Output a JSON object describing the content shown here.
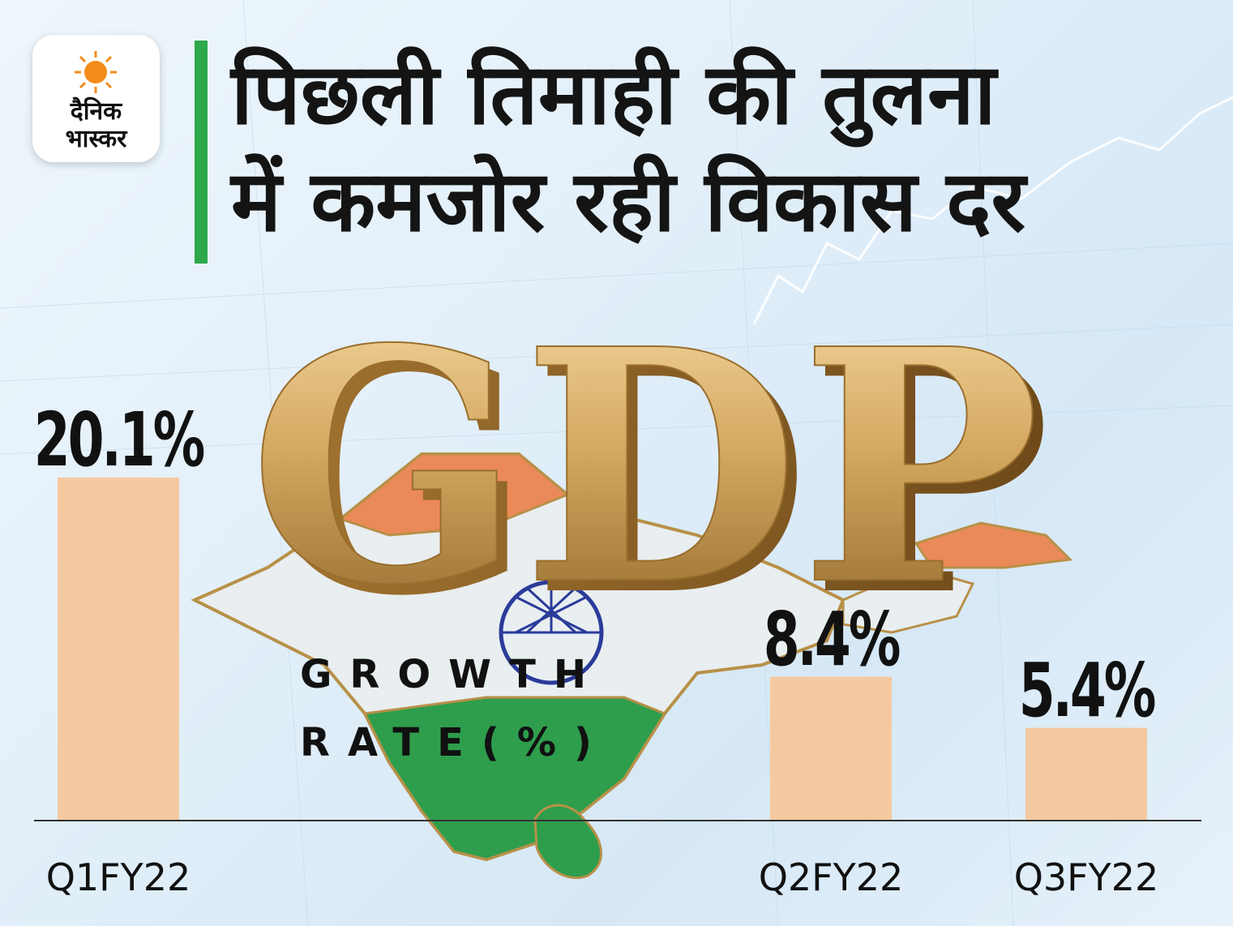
{
  "brand": {
    "line1": "दैनिक",
    "line2": "भास्कर"
  },
  "headline": {
    "line1": "पिछली तिमाही की तुलना",
    "line2": "में कमजोर रही विकास दर"
  },
  "image_text": "GDP",
  "subtitle": {
    "line1": "GROWTH",
    "line2": "RATE(%)"
  },
  "colors": {
    "bar": "#f5c9a0",
    "accent": "#2da84a",
    "gold": "#c99a45"
  },
  "chart_data": {
    "type": "bar",
    "title": "पिछली तिमाही की तुलना में कमजोर रही विकास दर",
    "categories": [
      "Q1FY22",
      "Q2FY22",
      "Q3FY22"
    ],
    "values": [
      20.1,
      8.4,
      5.4
    ],
    "value_labels": [
      "20.1%",
      "8.4%",
      "5.4%"
    ],
    "ylabel": "GROWTH RATE(%)",
    "grid": false,
    "legend": "none"
  }
}
